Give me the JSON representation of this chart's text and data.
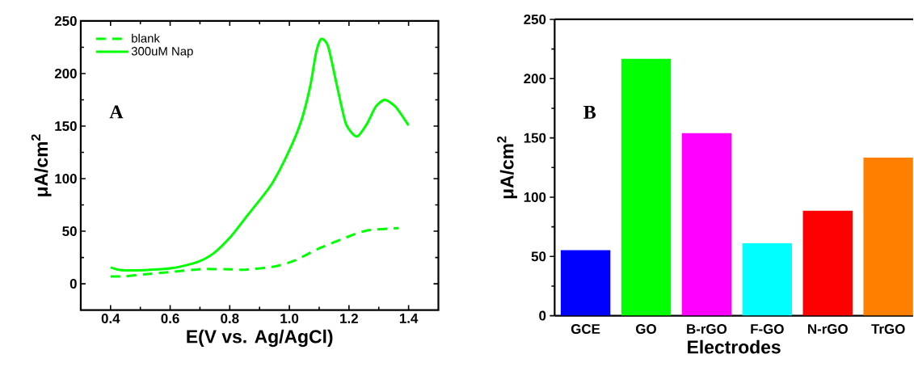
{
  "chart_data": [
    {
      "type": "line",
      "xlabel": "E(V vs. Ag/AgCl)",
      "ylabel": "μA/cm$^{2}$",
      "annotations": [
        "A"
      ],
      "legend": "top left",
      "xlim": [
        0.3,
        1.5
      ],
      "ylim": [
        -25,
        250
      ],
      "xticks": [
        0.4,
        0.6,
        0.8,
        {
          "value": 1,
          "label": "1.0"
        },
        1.2,
        1.4
      ],
      "yticks": [
        0,
        50,
        100,
        150,
        200,
        250
      ],
      "series": [
        {
          "name": "blank",
          "color": "#00ff00",
          "line_style": "dashed",
          "x": [
            0.4,
            0.445,
            0.513,
            0.61,
            0.707,
            0.804,
            0.853,
            0.95,
            1.017,
            1.095,
            1.19,
            1.26,
            1.366
          ],
          "values": [
            7,
            7,
            9,
            11.5,
            14,
            13.7,
            13.4,
            16.4,
            22,
            33,
            44,
            50.7,
            53
          ]
        },
        {
          "name": "300uM Nap",
          "color": "#00ff00",
          "line_style": "solid",
          "x": [
            0.4,
            0.436,
            0.513,
            0.61,
            0.69,
            0.746,
            0.804,
            0.862,
            0.94,
            1.0,
            1.04,
            1.07,
            1.09,
            1.107,
            1.13,
            1.16,
            1.19,
            1.226,
            1.26,
            1.29,
            1.32,
            1.356,
            1.4
          ],
          "values": [
            15.6,
            13,
            13,
            15,
            20.5,
            29,
            45,
            66,
            94.5,
            127,
            155,
            188,
            220.5,
            233,
            226,
            188,
            152,
            140,
            152,
            168.5,
            175,
            168.5,
            150.7
          ]
        }
      ]
    },
    {
      "type": "bar",
      "xlabel": "Electrodes",
      "ylabel": "μA/cm$^{2}$",
      "annotations": [
        "B"
      ],
      "ylim": [
        0,
        250
      ],
      "yticks": [
        0,
        50,
        100,
        150,
        200,
        250
      ],
      "categories": [
        "GCE",
        "GO",
        "B-rGO",
        "F-GO",
        "N-rGO",
        "TrGO"
      ],
      "values": [
        55.3,
        216.7,
        154,
        61.3,
        88.6,
        133.4
      ],
      "colors": [
        "#0000ff",
        "#00ff00",
        "#ff00ff",
        "#00ffff",
        "#ff0000",
        "#ff8000"
      ]
    }
  ]
}
